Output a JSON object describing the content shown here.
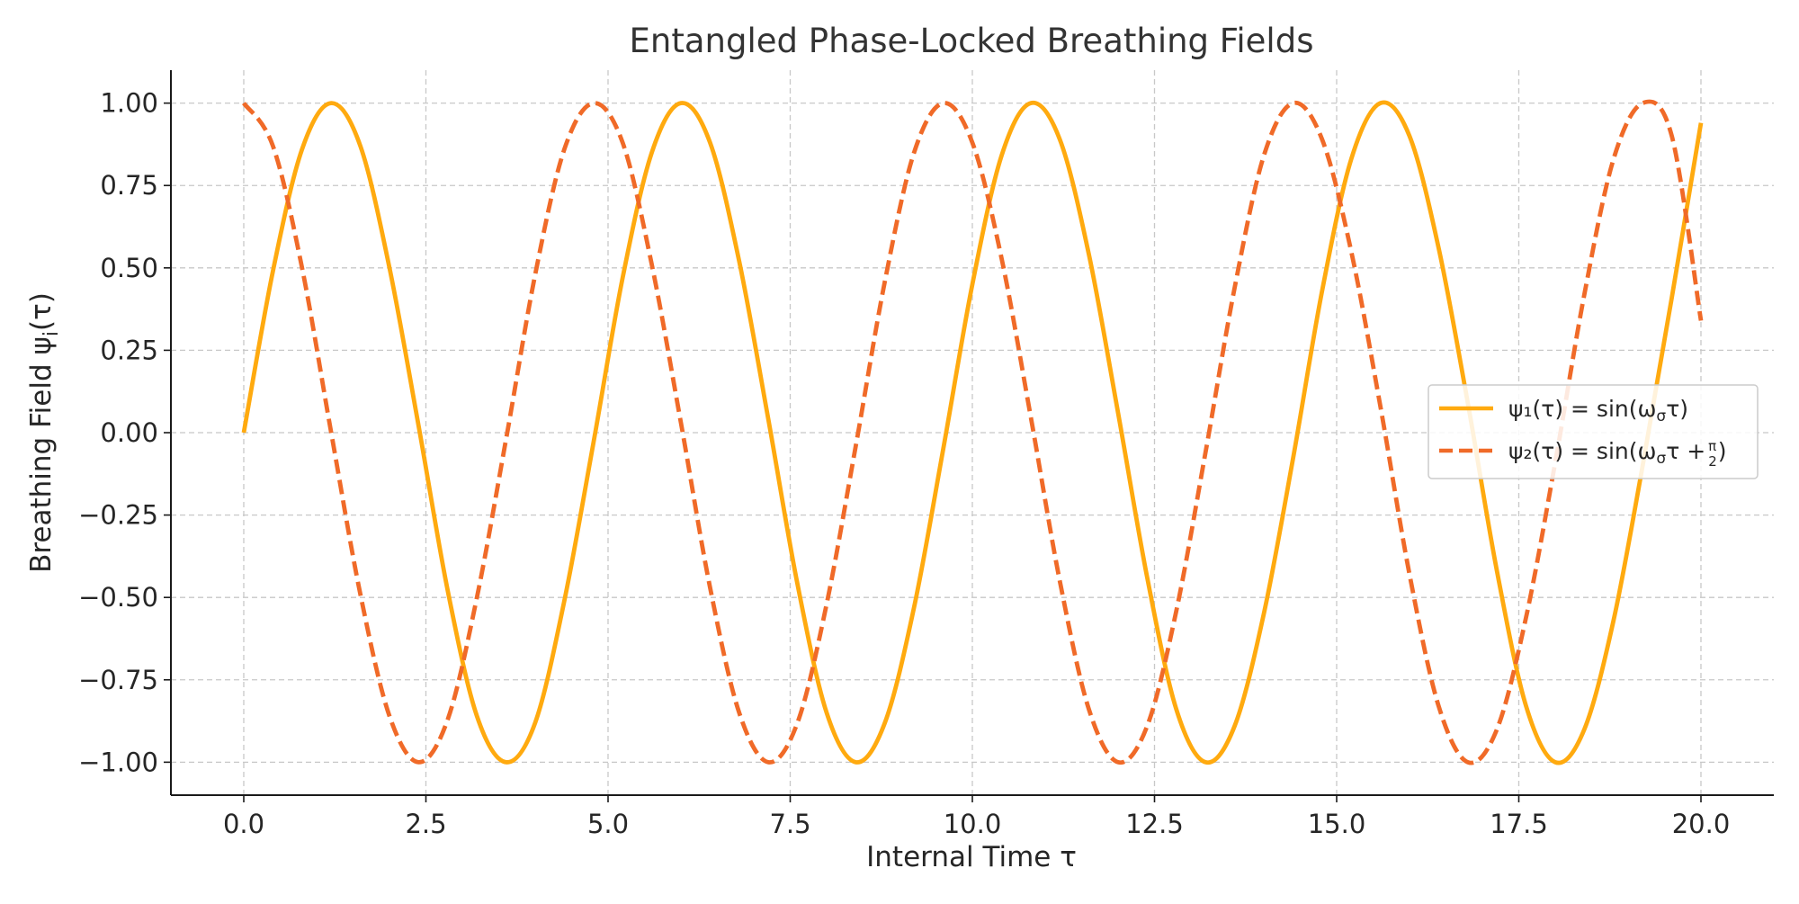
{
  "chart_data": {
    "type": "line",
    "title": "Entangled Phase-Locked Breathing Fields",
    "xlabel": "Internal Time τ",
    "ylabel": "Breathing Field ψᵢ(τ)",
    "xlim": [
      -1.0,
      21.0
    ],
    "ylim": [
      -1.1,
      1.1
    ],
    "x_ticks": [
      "0.0",
      "2.5",
      "5.0",
      "7.5",
      "10.0",
      "12.5",
      "15.0",
      "17.5",
      "20.0"
    ],
    "x_tick_values": [
      0,
      2.5,
      5,
      7.5,
      10,
      12.5,
      15,
      17.5,
      20
    ],
    "y_ticks": [
      "1.00",
      "0.75",
      "0.50",
      "0.25",
      "0.00",
      "−0.25",
      "−0.50",
      "−0.75",
      "−1.00"
    ],
    "y_tick_values": [
      1,
      0.75,
      0.5,
      0.25,
      0,
      -0.25,
      -0.5,
      -0.75,
      -1
    ],
    "grid": true,
    "legend_position": "center-right",
    "series": [
      {
        "name": "ψ₁(τ) = sin(ωστ)",
        "color": "#FFAA0F",
        "style": "solid",
        "x": [
          0.0,
          0.4,
          0.8,
          1.2,
          1.6,
          2.0,
          2.4,
          2.8,
          3.2,
          3.6,
          4.0,
          4.4,
          4.8,
          5.2,
          5.6,
          6.0,
          6.4,
          6.8,
          7.2,
          7.6,
          8.0,
          8.4,
          8.8,
          9.2,
          9.6,
          10.0,
          10.4,
          10.8,
          11.2,
          11.6,
          12.0,
          12.4,
          12.8,
          13.2,
          13.6,
          14.0,
          14.4,
          14.8,
          15.2,
          15.6,
          16.0,
          16.4,
          16.8,
          17.2,
          17.6,
          18.0,
          18.4,
          18.8,
          19.2,
          19.6,
          20.0
        ],
        "values": [
          0.0,
          0.49,
          0.86,
          1.0,
          0.87,
          0.5,
          0.02,
          -0.48,
          -0.86,
          -1.0,
          -0.88,
          -0.51,
          -0.03,
          0.47,
          0.85,
          1.0,
          0.88,
          0.52,
          0.04,
          -0.46,
          -0.85,
          -1.0,
          -0.88,
          -0.53,
          -0.05,
          0.45,
          0.84,
          1.0,
          0.89,
          0.54,
          0.06,
          -0.44,
          -0.84,
          -1.0,
          -0.89,
          -0.55,
          -0.08,
          0.43,
          0.83,
          1.0,
          0.9,
          0.56,
          0.09,
          -0.42,
          -0.83,
          -1.0,
          -0.9,
          -0.57,
          -0.1,
          0.41,
          0.94
        ]
      },
      {
        "name": "ψ₂(τ) = sin(ωστ + π/2)",
        "color": "#F06A28",
        "style": "dashed",
        "x": [
          0.0,
          0.4,
          0.8,
          1.2,
          1.6,
          2.0,
          2.4,
          2.8,
          3.2,
          3.6,
          4.0,
          4.4,
          4.8,
          5.2,
          5.6,
          6.0,
          6.4,
          6.8,
          7.2,
          7.6,
          8.0,
          8.4,
          8.8,
          9.2,
          9.6,
          10.0,
          10.4,
          10.8,
          11.2,
          11.6,
          12.0,
          12.4,
          12.8,
          13.2,
          13.6,
          14.0,
          14.4,
          14.8,
          15.2,
          15.6,
          16.0,
          16.4,
          16.8,
          17.2,
          17.6,
          18.0,
          18.4,
          18.8,
          19.2,
          19.6,
          20.0
        ],
        "values": [
          1.0,
          0.87,
          0.5,
          0.0,
          -0.49,
          -0.86,
          -1.0,
          -0.87,
          -0.5,
          -0.02,
          0.48,
          0.86,
          1.0,
          0.88,
          0.51,
          0.03,
          -0.47,
          -0.85,
          -1.0,
          -0.88,
          -0.52,
          -0.04,
          0.46,
          0.85,
          1.0,
          0.88,
          0.53,
          0.05,
          -0.45,
          -0.84,
          -1.0,
          -0.89,
          -0.54,
          -0.06,
          0.44,
          0.84,
          1.0,
          0.89,
          0.55,
          0.08,
          -0.43,
          -0.83,
          -1.0,
          -0.9,
          -0.56,
          -0.09,
          0.42,
          0.83,
          1.0,
          0.9,
          0.34
        ]
      }
    ]
  },
  "legend": {
    "line1_prefix": "ψ₁(τ) = sin(ω",
    "line1_sub": "σ",
    "line1_suffix": "τ)",
    "line2_prefix": "ψ₂(τ) = sin(ω",
    "line2_sub": "σ",
    "line2_mid": "τ +",
    "line2_frac_num": "π",
    "line2_frac_den": "2",
    "line2_suffix": ")"
  },
  "ylabel_parts": {
    "prefix": "Breathing Field ψ",
    "sub": "i",
    "suffix": "(τ)"
  }
}
